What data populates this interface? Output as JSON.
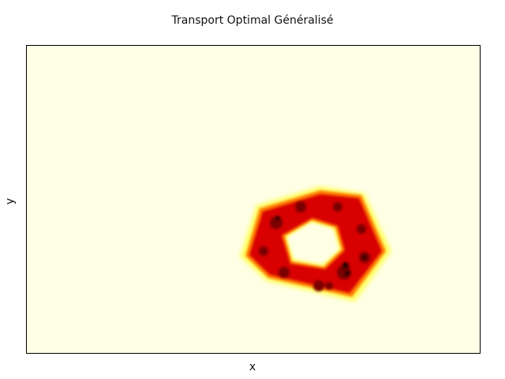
{
  "title": "Transport Optimal Généralisé",
  "xlabel": "x",
  "ylabel": "y",
  "colors": {
    "background": "#ffffe6",
    "frame": "#000000",
    "colormap": [
      "#ffffe6",
      "#ffff60",
      "#ff8000",
      "#e00000",
      "#800000",
      "#200000"
    ]
  },
  "chart_data": {
    "type": "heatmap",
    "title": "Transport Optimal Généralisé",
    "xlabel": "x",
    "ylabel": "y",
    "grid": false,
    "legend": "none",
    "colormap": "hot (reversed)",
    "xlim": [
      0,
      1
    ],
    "ylim": [
      0,
      1
    ],
    "shape": {
      "description": "pentagonal ring (donut) density",
      "center": [
        0.635,
        0.36
      ],
      "inner_radius": [
        0.055,
        0.085
      ],
      "outer_radius": [
        0.155,
        0.215
      ],
      "lobes": 5
    },
    "peak_value": 1.0
  }
}
